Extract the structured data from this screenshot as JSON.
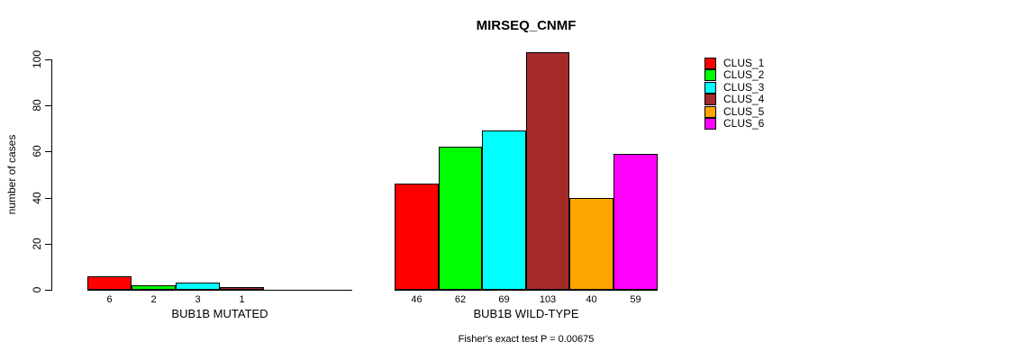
{
  "figure": {
    "title": "MIRSEQ_CNMF",
    "ylabel": "number of cases",
    "annotation": "Fisher's exact test P = 0.00675"
  },
  "chart_data": {
    "type": "bar",
    "title": "MIRSEQ_CNMF",
    "ylabel": "number of cases",
    "xlabel": "",
    "ylim": [
      0,
      100
    ],
    "yticks": [
      0,
      20,
      40,
      60,
      80,
      100
    ],
    "grid": false,
    "legend_position": "right",
    "legend": [
      {
        "label": "CLUS_1",
        "color": "#FF0000"
      },
      {
        "label": "CLUS_2",
        "color": "#00FF00"
      },
      {
        "label": "CLUS_3",
        "color": "#00FFFF"
      },
      {
        "label": "CLUS_4",
        "color": "#A52A2A"
      },
      {
        "label": "CLUS_5",
        "color": "#FFA500"
      },
      {
        "label": "CLUS_6",
        "color": "#FF00FF"
      }
    ],
    "groups": [
      {
        "label": "BUB1B MUTATED",
        "values": [
          6,
          2,
          3,
          1,
          0,
          0
        ],
        "bar_labels": [
          "6",
          "2",
          "3",
          "1",
          "",
          ""
        ]
      },
      {
        "label": "BUB1B WILD-TYPE",
        "values": [
          46,
          62,
          69,
          103,
          40,
          59
        ],
        "bar_labels": [
          "46",
          "62",
          "69",
          "103",
          "40",
          "59"
        ]
      }
    ],
    "annotation": "Fisher's exact test P = 0.00675"
  }
}
